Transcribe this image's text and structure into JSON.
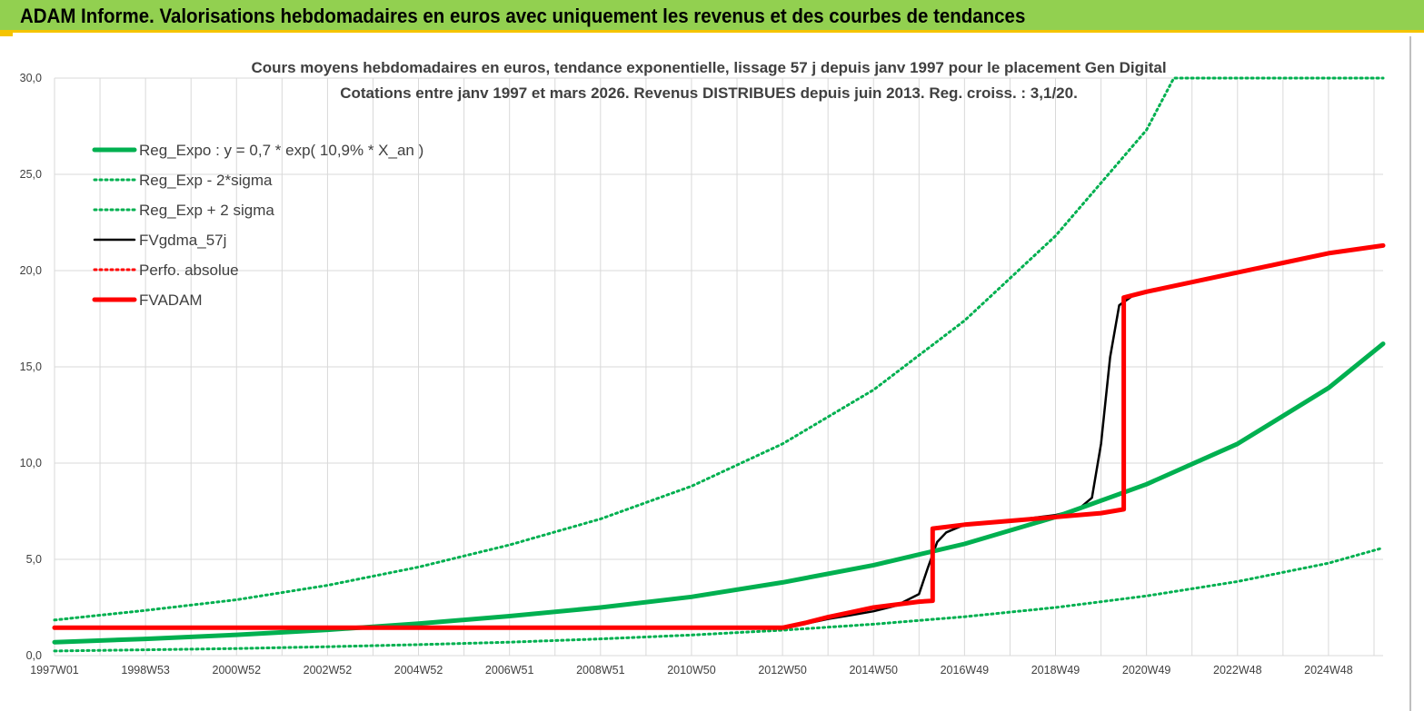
{
  "header": {
    "title": "ADAM Informe. Valorisations hebdomadaires en euros avec uniquement les revenus et des courbes de tendances"
  },
  "chart_data": {
    "type": "line",
    "title": "Cours moyens hebdomadaires en euros, tendance exponentielle, lissage 57 j depuis janv 1997 pour le placement Gen Digital",
    "subtitle": "Cotations entre janv 1997 et mars 2026. Revenus DISTRIBUES depuis juin 2013. Reg. croiss. : 3,1/20.",
    "xlabel": "",
    "ylabel": "",
    "xlim": [
      1997.0,
      2026.2
    ],
    "ylim": [
      0,
      30
    ],
    "grid": true,
    "legend_position": "top-left",
    "x_ticks": [
      {
        "label": "1997W01",
        "x": 1997.0
      },
      {
        "label": "1998W53",
        "x": 1999.0
      },
      {
        "label": "2000W52",
        "x": 2001.0
      },
      {
        "label": "2002W52",
        "x": 2003.0
      },
      {
        "label": "2004W52",
        "x": 2005.0
      },
      {
        "label": "2006W51",
        "x": 2007.0
      },
      {
        "label": "2008W51",
        "x": 2009.0
      },
      {
        "label": "2010W50",
        "x": 2011.0
      },
      {
        "label": "2012W50",
        "x": 2013.0
      },
      {
        "label": "2014W50",
        "x": 2015.0
      },
      {
        "label": "2016W49",
        "x": 2017.0
      },
      {
        "label": "2018W49",
        "x": 2019.0
      },
      {
        "label": "2020W49",
        "x": 2021.0
      },
      {
        "label": "2022W48",
        "x": 2023.0
      },
      {
        "label": "2024W48",
        "x": 2025.0
      }
    ],
    "y_ticks": [
      {
        "label": "0,0",
        "y": 0
      },
      {
        "label": "5,0",
        "y": 5
      },
      {
        "label": "10,0",
        "y": 10
      },
      {
        "label": "15,0",
        "y": 15
      },
      {
        "label": "20,0",
        "y": 20
      },
      {
        "label": "25,0",
        "y": 25
      },
      {
        "label": "30,0",
        "y": 30
      }
    ],
    "series": [
      {
        "name": "Reg_Expo : y = 0,7 * exp( 10,9% *  X_an )",
        "color": "#00b050",
        "style": "solid-thick",
        "x": [
          1997.0,
          1999.0,
          2001.0,
          2003.0,
          2005.0,
          2007.0,
          2009.0,
          2011.0,
          2013.0,
          2015.0,
          2017.0,
          2019.0,
          2021.0,
          2023.0,
          2025.0,
          2026.2
        ],
        "y": [
          0.7,
          0.87,
          1.08,
          1.34,
          1.66,
          2.05,
          2.5,
          3.05,
          3.8,
          4.7,
          5.8,
          7.2,
          8.9,
          11.0,
          13.9,
          16.2
        ]
      },
      {
        "name": "Reg_Exp - 2*sigma",
        "color": "#00b050",
        "style": "dotted",
        "x": [
          1997.0,
          1999.0,
          2001.0,
          2003.0,
          2005.0,
          2007.0,
          2009.0,
          2011.0,
          2013.0,
          2015.0,
          2017.0,
          2019.0,
          2021.0,
          2023.0,
          2025.0,
          2026.2
        ],
        "y": [
          0.24,
          0.3,
          0.37,
          0.46,
          0.57,
          0.7,
          0.87,
          1.07,
          1.32,
          1.63,
          2.02,
          2.5,
          3.1,
          3.85,
          4.8,
          5.6
        ]
      },
      {
        "name": "Reg_Exp + 2 sigma",
        "color": "#00b050",
        "style": "dotted",
        "x": [
          1997.0,
          1999.0,
          2001.0,
          2003.0,
          2005.0,
          2007.0,
          2009.0,
          2011.0,
          2013.0,
          2015.0,
          2017.0,
          2019.0,
          2021.0,
          2021.6,
          2023.0,
          2025.0,
          2026.2
        ],
        "y": [
          1.85,
          2.35,
          2.9,
          3.65,
          4.6,
          5.75,
          7.1,
          8.8,
          11.0,
          13.8,
          17.4,
          21.8,
          27.3,
          30.0,
          30.0,
          30.0,
          30.0
        ]
      },
      {
        "name": "FVgdma_57j",
        "color": "#000000",
        "style": "solid",
        "x": [
          1997.0,
          2013.0,
          2013.5,
          2014.0,
          2014.5,
          2015.0,
          2015.5,
          2016.0,
          2016.2,
          2016.4,
          2016.6,
          2017.0,
          2018.0,
          2019.0,
          2019.5,
          2019.8,
          2020.0,
          2020.2,
          2020.4,
          2020.7,
          2021.0,
          2022.0,
          2023.0,
          2024.0,
          2025.0,
          2026.2
        ],
        "y": [
          1.45,
          1.45,
          1.65,
          1.9,
          2.1,
          2.3,
          2.6,
          3.2,
          4.6,
          5.9,
          6.4,
          6.8,
          7.0,
          7.3,
          7.6,
          8.2,
          11.0,
          15.5,
          18.2,
          18.7,
          18.9,
          19.4,
          19.9,
          20.4,
          20.9,
          21.3
        ]
      },
      {
        "name": "Perfo. absolue",
        "color": "#ff0000",
        "style": "dotted",
        "x": [],
        "y": []
      },
      {
        "name": "FVADAM",
        "color": "#ff0000",
        "style": "solid-thick",
        "x": [
          1997.0,
          2013.0,
          2013.5,
          2014.0,
          2014.5,
          2015.0,
          2016.0,
          2016.3,
          2016.3,
          2017.0,
          2018.0,
          2019.0,
          2020.0,
          2020.5,
          2020.5,
          2021.0,
          2022.0,
          2023.0,
          2024.0,
          2025.0,
          2026.2
        ],
        "y": [
          1.45,
          1.45,
          1.7,
          2.0,
          2.25,
          2.5,
          2.8,
          2.85,
          6.6,
          6.8,
          7.0,
          7.2,
          7.4,
          7.6,
          18.6,
          18.9,
          19.4,
          19.9,
          20.4,
          20.9,
          21.3
        ]
      }
    ]
  }
}
